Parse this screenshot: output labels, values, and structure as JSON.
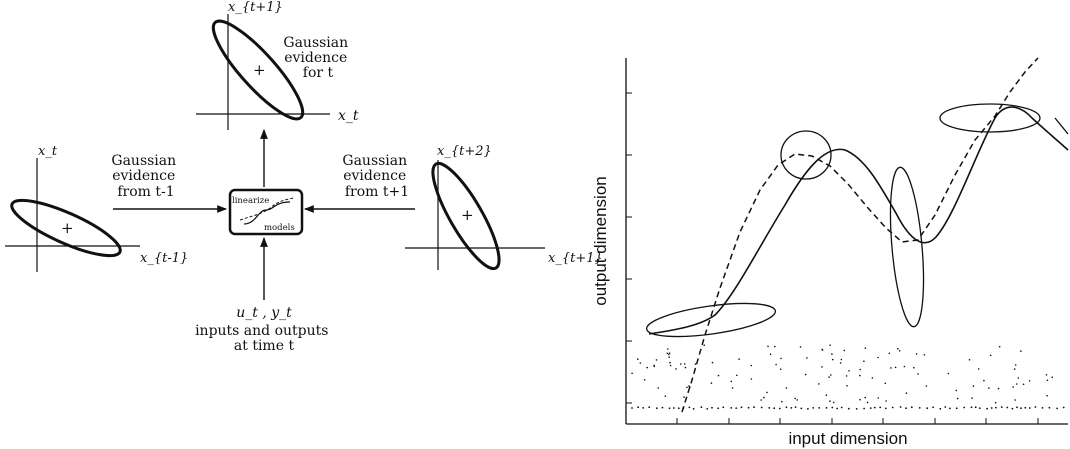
{
  "left_diagram": {
    "top_plot": {
      "y_axis": "x_{t+1}",
      "x_axis": "x_t"
    },
    "left_plot": {
      "y_axis": "x_t",
      "x_axis": "x_{t-1}"
    },
    "right_plot": {
      "y_axis": "x_{t+2}",
      "x_axis": "x_{t+1}"
    },
    "label_for_t": [
      "Gaussian",
      "evidence",
      "for t"
    ],
    "label_from_prev": [
      "Gaussian",
      "evidence",
      "from t-1"
    ],
    "label_from_next": [
      "Gaussian",
      "evidence",
      "from t+1"
    ],
    "center_box": {
      "top_word": "linearize",
      "bottom_word": "models"
    },
    "bottom_vars": "u_t , y_t",
    "bottom_lines": [
      "inputs and outputs",
      "at time t"
    ],
    "marker": "+"
  },
  "right_plot": {
    "xlabel": "input dimension",
    "ylabel": "output dimension"
  }
}
